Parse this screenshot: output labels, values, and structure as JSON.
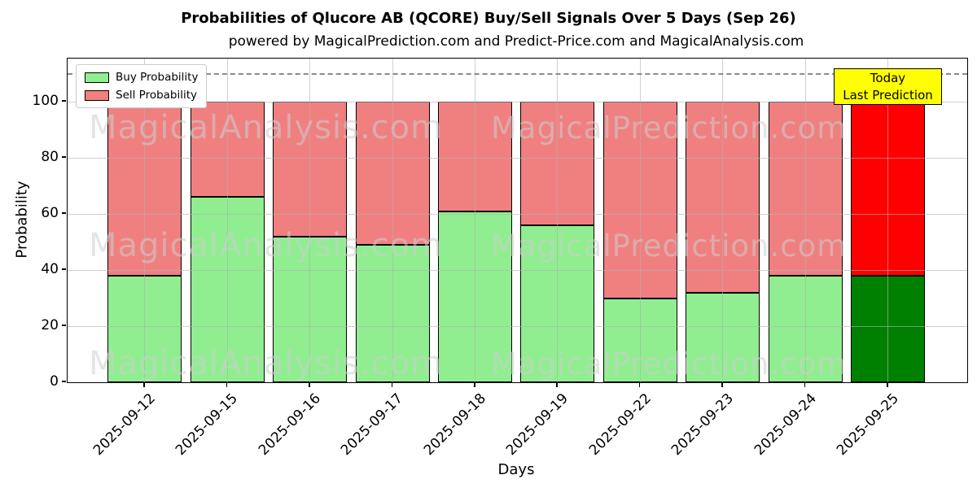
{
  "header": {
    "title": "Probabilities of Qlucore AB (QCORE) Buy/Sell Signals Over 5 Days (Sep 26)",
    "subtitle": "powered by MagicalPrediction.com and Predict-Price.com and MagicalAnalysis.com"
  },
  "chart_data": {
    "type": "bar",
    "stacked": true,
    "title": "Probabilities of Qlucore AB (QCORE) Buy/Sell Signals Over 5 Days (Sep 26)",
    "subtitle": "powered by MagicalPrediction.com and Predict-Price.com and MagicalAnalysis.com",
    "xlabel": "Days",
    "ylabel": "Probability",
    "categories": [
      "2025-09-12",
      "2025-09-15",
      "2025-09-16",
      "2025-09-17",
      "2025-09-18",
      "2025-09-19",
      "2025-09-22",
      "2025-09-23",
      "2025-09-24",
      "2025-09-25"
    ],
    "series": [
      {
        "name": "Buy Probability",
        "color": "#90EE90",
        "values": [
          38,
          66,
          52,
          49,
          61,
          56,
          30,
          32,
          38,
          38
        ]
      },
      {
        "name": "Sell Probability",
        "color": "#F08080",
        "values": [
          62,
          34,
          48,
          51,
          39,
          44,
          70,
          68,
          62,
          62
        ]
      }
    ],
    "today_bar": {
      "category": "2025-09-25",
      "index": 9,
      "buy_color": "#008000",
      "sell_color": "#FF0000"
    },
    "yticks": [
      0,
      20,
      40,
      60,
      80,
      100
    ],
    "ylim": [
      0,
      115.4
    ],
    "grid": true,
    "threshold_line": {
      "y": 110,
      "style": "dashed",
      "color": "#8a8a8a"
    },
    "legend": {
      "position": "upper-left",
      "entries": [
        "Buy Probability",
        "Sell Probability"
      ]
    },
    "annotation": {
      "line1": "Today",
      "line2": "Last Prediction",
      "bg_color": "#FFFF00"
    },
    "watermarks": {
      "left_text": "MagicalAnalysis.com",
      "right_text": "MagicalPrediction.com",
      "rows": 3
    },
    "edge_color": "#000000"
  }
}
